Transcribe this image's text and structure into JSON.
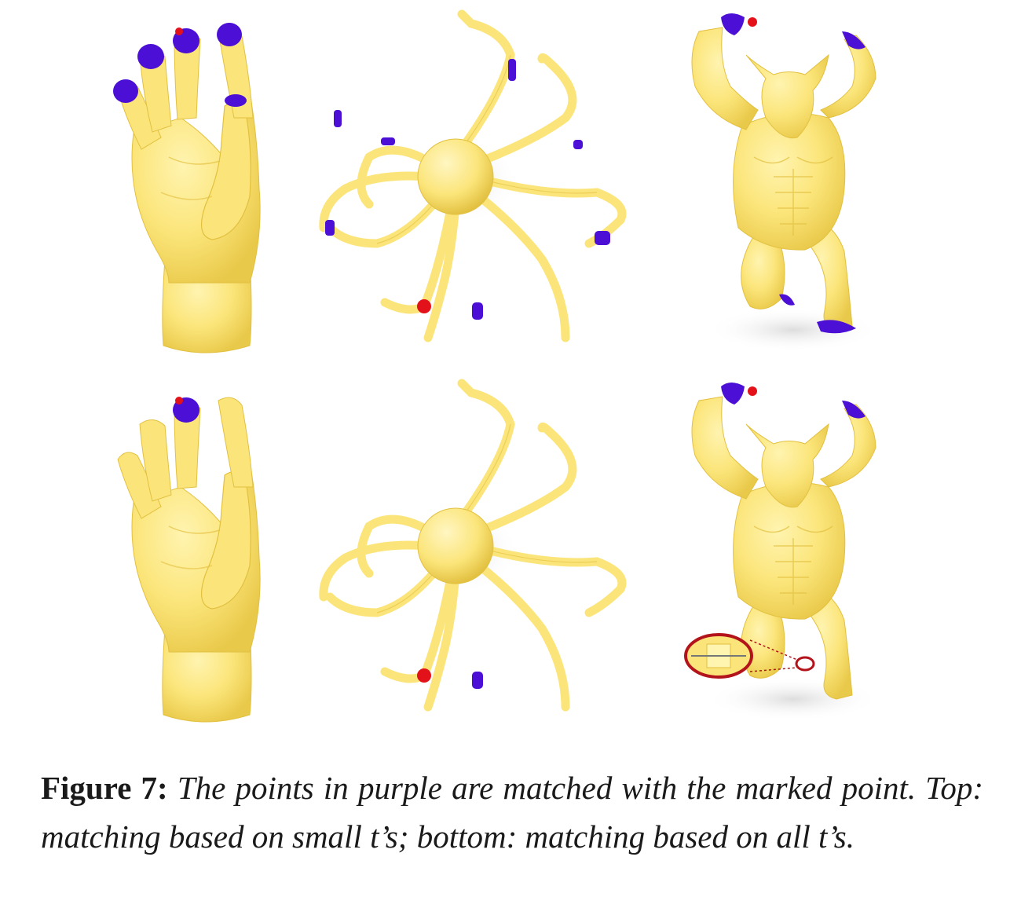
{
  "colors": {
    "mesh": "#fbe57a",
    "mesh_shade": "#e9c94a",
    "match": "#4b0fd6",
    "marker": "#e3121a",
    "shadow": "#e6e6e6",
    "zoom_ring": "#b3141b"
  },
  "figure": {
    "rows": [
      {
        "label": "top",
        "models": [
          "hand",
          "octopus",
          "armadillo"
        ]
      },
      {
        "label": "bottom",
        "models": [
          "hand",
          "octopus",
          "armadillo"
        ]
      }
    ]
  },
  "caption": {
    "label": "Figure 7:",
    "text": "The points in purple are matched with the marked point. Top: matching based on small t’s; bottom: matching based on all t’s."
  }
}
